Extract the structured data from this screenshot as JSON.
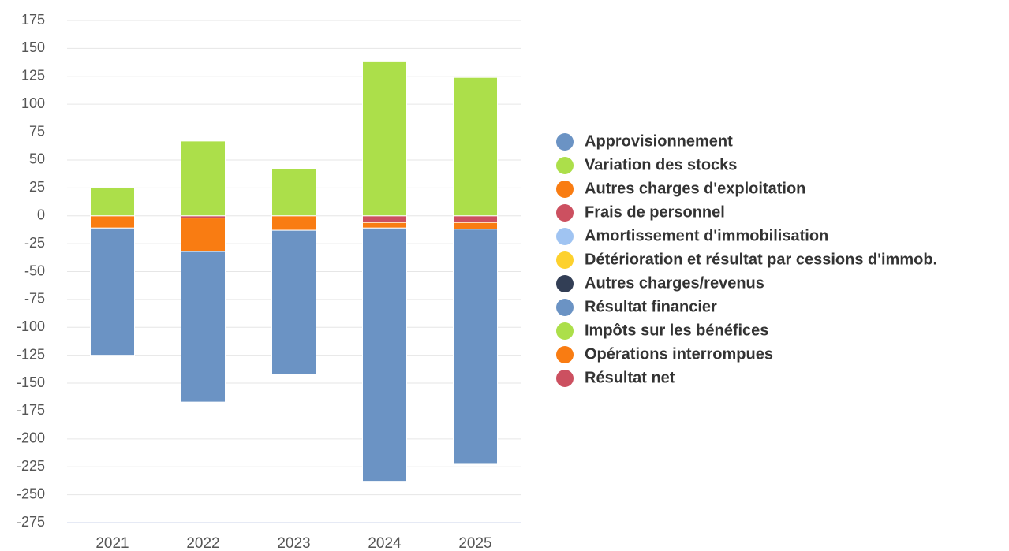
{
  "chart_data": {
    "type": "stacked_bar",
    "categories": [
      "2021",
      "2022",
      "2023",
      "2024",
      "2025"
    ],
    "series": [
      {
        "name": "Approvisionnement",
        "color": "#6b93c4",
        "values": [
          -114,
          -135,
          -129,
          -227,
          -210
        ]
      },
      {
        "name": "Variation des stocks",
        "color": "#acdf4a",
        "values": [
          25,
          67,
          42,
          138,
          124
        ]
      },
      {
        "name": "Autres charges d'exploitation",
        "color": "#f97c12",
        "values": [
          -11,
          -30,
          -13,
          -5,
          -6
        ]
      },
      {
        "name": "Frais de personnel",
        "color": "#cc5060",
        "values": [
          0,
          -2,
          0,
          -6,
          -6
        ]
      },
      {
        "name": "Amortissement d'immobilisation",
        "color": "#a0c4f2",
        "values": [
          null,
          null,
          null,
          null,
          null
        ]
      },
      {
        "name": "Détérioration et résultat par cessions d'immob.",
        "color": "#fdd12d",
        "values": [
          null,
          null,
          null,
          null,
          null
        ]
      },
      {
        "name": "Autres charges/revenus",
        "color": "#323e55",
        "values": [
          null,
          null,
          null,
          null,
          null
        ]
      },
      {
        "name": "Résultat financier",
        "color": "#6b93c4",
        "values": [
          null,
          null,
          null,
          null,
          null
        ]
      },
      {
        "name": "Impôts sur les bénéfices",
        "color": "#acdf4a",
        "values": [
          null,
          null,
          null,
          null,
          null
        ]
      },
      {
        "name": "Opérations interrompues",
        "color": "#f97c12",
        "values": [
          null,
          null,
          null,
          null,
          null
        ]
      },
      {
        "name": "Résultat net",
        "color": "#cc5060",
        "values": [
          null,
          null,
          null,
          null,
          null
        ]
      }
    ],
    "ylim": [
      -275,
      175
    ],
    "yticks": [
      -275,
      -250,
      -225,
      -200,
      -175,
      -150,
      -125,
      -100,
      -75,
      -50,
      -25,
      0,
      25,
      50,
      75,
      100,
      125,
      150,
      175
    ],
    "grid": true,
    "legend": "right"
  }
}
